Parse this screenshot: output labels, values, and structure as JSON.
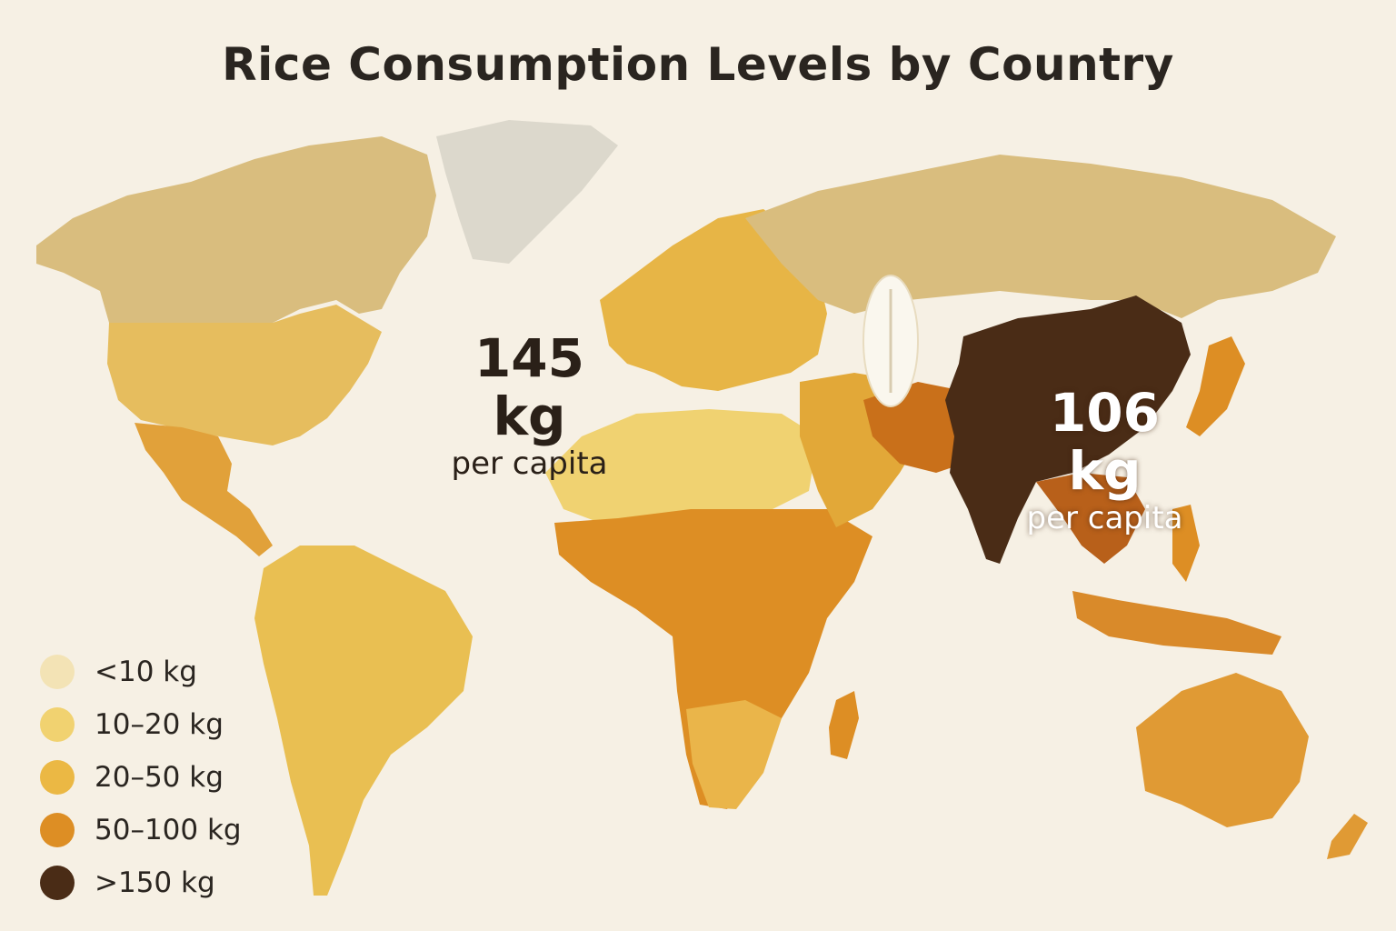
{
  "title": "Rice Consumption Levels by Country",
  "callouts": {
    "west": {
      "value": "145 kg",
      "unit": "per capita"
    },
    "east": {
      "value": "106 kg",
      "unit": "per capita"
    }
  },
  "legend": [
    {
      "label": "<10 kg",
      "color": "#f3e3b5"
    },
    {
      "label": "10–20 kg",
      "color": "#f1d270"
    },
    {
      "label": "20–50 kg",
      "color": "#ebb844"
    },
    {
      "label": "50–100 kg",
      "color": "#dd8e24"
    },
    {
      "label": ">150 kg",
      "color": "#4a2c16"
    }
  ],
  "colors": {
    "background": "#f6f0e4",
    "no_data": "#dcd8cc",
    "pale_band": "#d9bd7e",
    "mid_band": "#e2a838",
    "high_band": "#c9701a",
    "dark_band": "#4a2c16",
    "rice_grain": "#faf7ee"
  },
  "icons": [
    "rice-grain-icon"
  ]
}
